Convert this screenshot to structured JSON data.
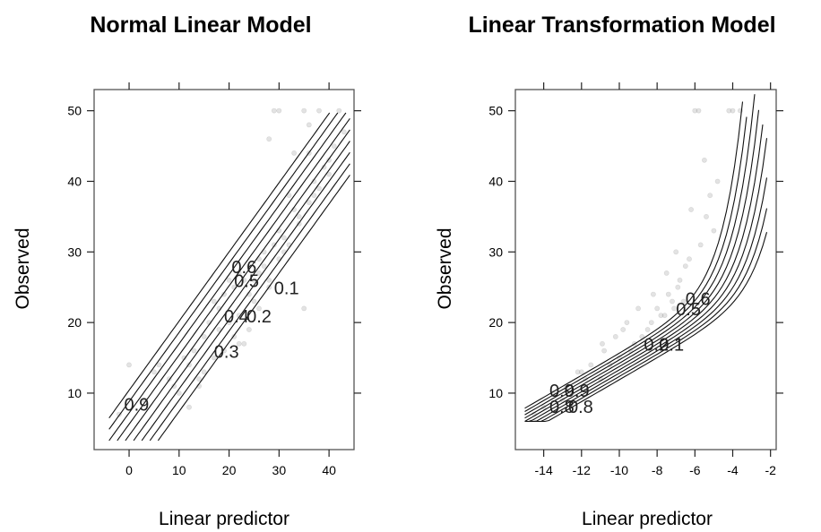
{
  "chart_data": [
    {
      "type": "scatter",
      "title": "Normal Linear Model",
      "xlabel": "Linear predictor",
      "ylabel": "Observed",
      "xlim": [
        -7,
        45
      ],
      "ylim": [
        2,
        53
      ],
      "xticks": [
        0,
        10,
        20,
        30,
        40
      ],
      "yticks": [
        10,
        20,
        30,
        40,
        50
      ],
      "grid": false,
      "contour_labels": [
        {
          "text": "0.9",
          "x": -1.0,
          "y": 7.5
        },
        {
          "text": "0.3",
          "x": 17.0,
          "y": 15.0
        },
        {
          "text": "0.4",
          "x": 19.0,
          "y": 20.0
        },
        {
          "text": "0.2",
          "x": 23.5,
          "y": 20.0
        },
        {
          "text": "0.1",
          "x": 29.0,
          "y": 24.0
        },
        {
          "text": "0.6",
          "x": 20.5,
          "y": 27.0
        },
        {
          "text": "0.5",
          "x": 21.0,
          "y": 25.0
        }
      ],
      "series": [
        {
          "x": [
            42,
            38,
            35,
            30,
            29,
            28,
            33,
            36,
            40,
            22,
            24,
            25,
            27,
            31,
            34,
            19,
            18,
            21,
            23,
            15,
            13,
            11,
            8,
            6,
            3,
            17,
            20,
            26,
            32,
            37,
            39,
            41,
            43,
            12,
            16,
            14,
            10,
            9,
            5,
            0,
            -2,
            22,
            25,
            28,
            30,
            33,
            36,
            24,
            26,
            29,
            31,
            34,
            35,
            20,
            18,
            21,
            23,
            19,
            17,
            15,
            14,
            12,
            27,
            30,
            32,
            38,
            40,
            36,
            26,
            28,
            24,
            22,
            37
          ],
          "y": [
            50,
            50,
            50,
            50,
            50,
            46,
            44,
            48,
            43,
            27,
            28,
            26,
            30,
            32,
            35,
            24,
            22,
            25,
            26,
            18,
            16,
            15,
            12,
            14,
            9,
            23,
            26,
            29,
            38,
            40,
            42,
            45,
            47,
            14,
            20,
            12,
            10,
            11,
            13,
            14,
            7,
            21,
            23,
            25,
            33,
            36,
            37,
            24,
            27,
            31,
            30,
            34,
            22,
            20,
            19,
            18,
            17,
            16,
            15,
            13,
            11,
            8,
            28,
            29,
            31,
            39,
            41,
            44,
            22,
            26,
            19,
            17,
            38
          ]
        }
      ]
    },
    {
      "type": "scatter",
      "title": "Linear Transformation Model",
      "xlabel": "Linear predictor",
      "ylabel": "Observed",
      "xlim": [
        -15.5,
        -1.7
      ],
      "ylim": [
        2,
        53
      ],
      "xticks": [
        -14,
        -12,
        -10,
        -8,
        -6,
        -4,
        -2
      ],
      "yticks": [
        10,
        20,
        30,
        40,
        50
      ],
      "grid": false,
      "contour_labels": [
        {
          "text": "0.9",
          "x": -13.7,
          "y": 9.5
        },
        {
          "text": "0.9",
          "x": -12.9,
          "y": 9.5
        },
        {
          "text": "0.8",
          "x": -13.7,
          "y": 7.2
        },
        {
          "text": "0.8",
          "x": -12.7,
          "y": 7.2
        },
        {
          "text": "0.2",
          "x": -8.7,
          "y": 16.0
        },
        {
          "text": "0.1",
          "x": -7.9,
          "y": 16.0
        },
        {
          "text": "0.5",
          "x": -7.0,
          "y": 21.0
        },
        {
          "text": "0.6",
          "x": -6.5,
          "y": 22.5
        }
      ],
      "series": [
        {
          "x": [
            -6.0,
            -5.8,
            -4.2,
            -4.0,
            -3.6,
            -5.5,
            -6.2,
            -7.0,
            -7.5,
            -8.2,
            -9.0,
            -9.6,
            -10.2,
            -10.8,
            -11.5,
            -12.2,
            -12.8,
            -13.5,
            -14.0,
            -6.8,
            -7.2,
            -7.8,
            -8.5,
            -9.2,
            -10.0,
            -11.0,
            -5.2,
            -5.0,
            -6.5,
            -8.0,
            -8.8,
            -9.4,
            -10.5,
            -11.8,
            -12.5,
            -13.0,
            -14.5,
            -7.4,
            -6.9,
            -6.3,
            -5.7,
            -4.8,
            -9.8,
            -10.9,
            -12.0,
            -8.3,
            -7.6,
            -7.1,
            -6.6,
            -5.4
          ],
          "y": [
            50,
            50,
            50,
            50,
            50,
            43,
            36,
            30,
            27,
            24,
            22,
            20,
            18,
            16,
            14,
            13,
            11,
            10,
            8,
            26,
            23,
            21,
            19,
            17,
            15,
            12,
            38,
            33,
            28,
            22,
            18,
            16,
            14,
            12,
            10,
            9,
            7,
            24,
            25,
            29,
            31,
            40,
            19,
            17,
            13,
            20,
            21,
            22,
            23,
            35
          ]
        }
      ]
    }
  ]
}
